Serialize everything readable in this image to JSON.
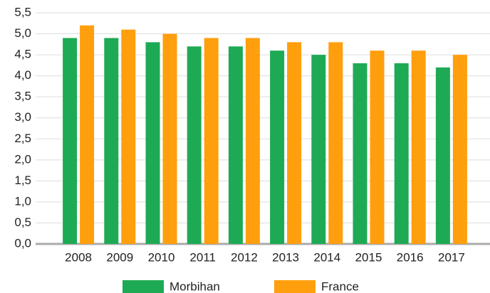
{
  "chart_data": {
    "type": "bar",
    "categories": [
      "2008",
      "2009",
      "2010",
      "2011",
      "2012",
      "2013",
      "2014",
      "2015",
      "2016",
      "2017"
    ],
    "series": [
      {
        "name": "Morbihan",
        "color": "#1eaa55",
        "values": [
          4.9,
          4.9,
          4.8,
          4.7,
          4.7,
          4.6,
          4.5,
          4.3,
          4.3,
          4.2
        ]
      },
      {
        "name": "France",
        "color": "#ff9f0d",
        "values": [
          5.2,
          5.1,
          5.0,
          4.9,
          4.9,
          4.8,
          4.8,
          4.6,
          4.6,
          4.5
        ]
      }
    ],
    "ylim": [
      0,
      5.5
    ],
    "yticks": [
      {
        "value": 0,
        "label": "0,0"
      },
      {
        "value": 0.5,
        "label": "0,5"
      },
      {
        "value": 1,
        "label": "1,0"
      },
      {
        "value": 1.5,
        "label": "1,5"
      },
      {
        "value": 2,
        "label": "2,0"
      },
      {
        "value": 2.5,
        "label": "2,5"
      },
      {
        "value": 3,
        "label": "3,0"
      },
      {
        "value": 3.5,
        "label": "3,5"
      },
      {
        "value": 4,
        "label": "4,0"
      },
      {
        "value": 4.5,
        "label": "4,5"
      },
      {
        "value": 5,
        "label": "5,0"
      },
      {
        "value": 5.5,
        "label": "5,5"
      }
    ],
    "grid": true,
    "legend": "bottom"
  }
}
